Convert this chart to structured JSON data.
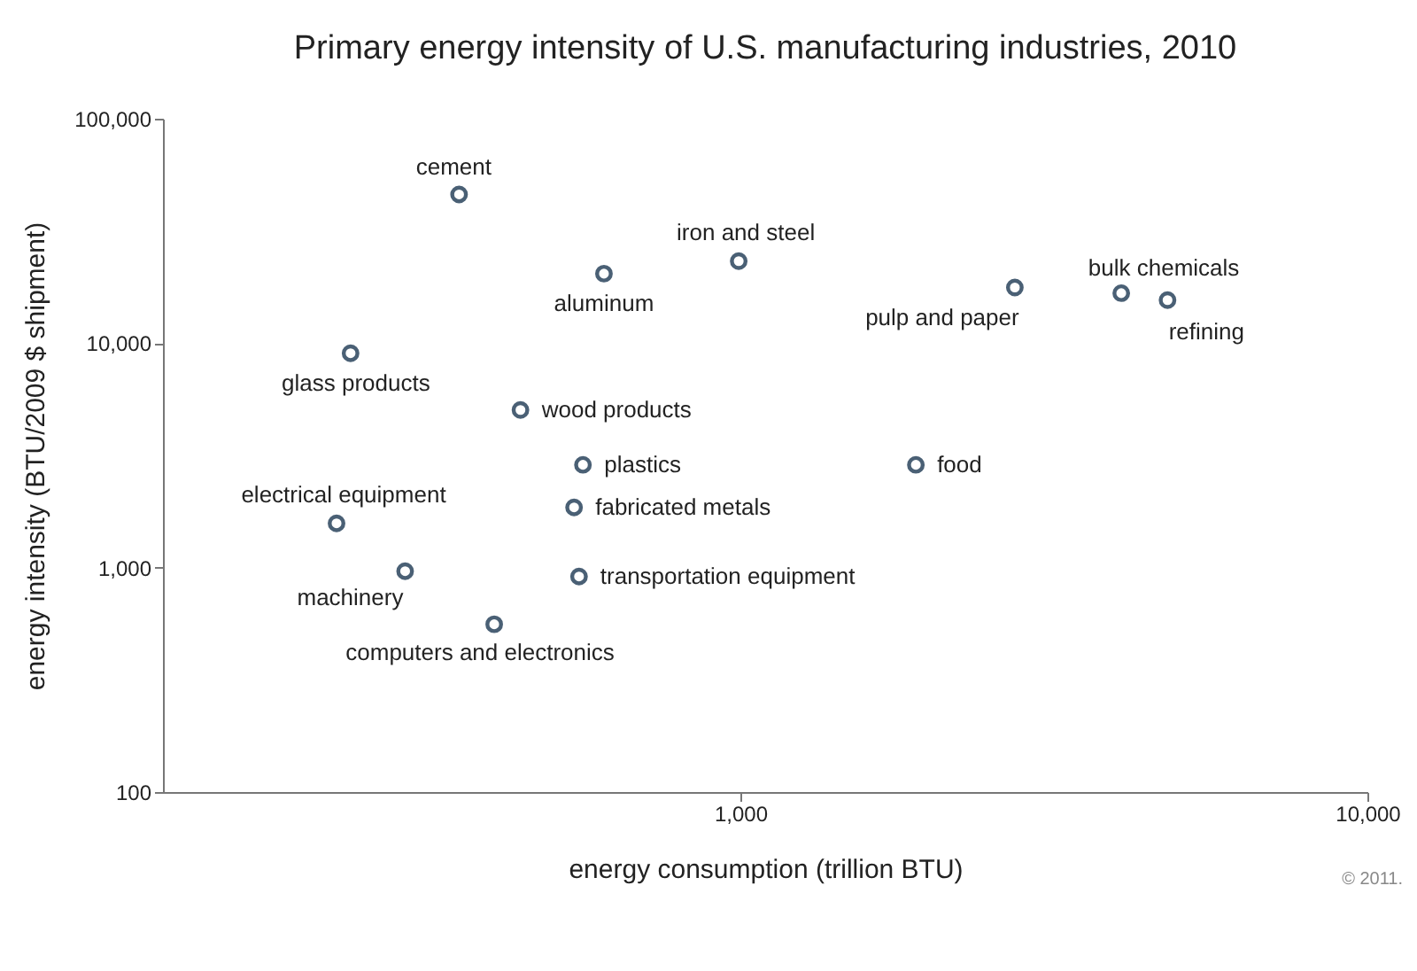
{
  "chart_data": {
    "type": "scatter",
    "title": "Primary energy intensity of U.S. manufacturing industries, 2010",
    "xlabel": "energy consumption (trillion BTU)",
    "ylabel": "energy intensity (BTU/2009 $ shipment)",
    "x": [
      356,
      606,
      994,
      2740,
      4050,
      4800,
      239,
      446,
      561,
      1905,
      227,
      543,
      292,
      553,
      405
    ],
    "series": [
      {
        "color": "#4a6075",
        "values": [
          46000,
          20400,
          23200,
          17700,
          16700,
          15550,
          9020,
          5040,
          2870,
          2870,
          1575,
          1855,
          964,
          913,
          559
        ]
      }
    ],
    "annotations": [
      {
        "text": "cement",
        "x": 356,
        "y": 46000
      },
      {
        "text": "aluminum",
        "x": 606,
        "y": 20400
      },
      {
        "text": "iron and steel",
        "x": 994,
        "y": 23200
      },
      {
        "text": "pulp and paper",
        "x": 2740,
        "y": 17700
      },
      {
        "text": "bulk chemicals",
        "x": 4050,
        "y": 16700
      },
      {
        "text": "refining",
        "x": 4800,
        "y": 15550
      },
      {
        "text": "glass products",
        "x": 239,
        "y": 9020
      },
      {
        "text": "wood products",
        "x": 446,
        "y": 5040
      },
      {
        "text": "plastics",
        "x": 561,
        "y": 2870
      },
      {
        "text": "food",
        "x": 1905,
        "y": 2870
      },
      {
        "text": "electrical equipment",
        "x": 227,
        "y": 1575
      },
      {
        "text": "fabricated metals",
        "x": 543,
        "y": 1855
      },
      {
        "text": "machinery",
        "x": 292,
        "y": 964
      },
      {
        "text": "transportation equipment",
        "x": 553,
        "y": 913
      },
      {
        "text": "computers and electronics",
        "x": 405,
        "y": 559
      },
      "© 2011."
    ],
    "log": "xy",
    "marker": "circle",
    "grid": false,
    "xlim": [
      120,
      10000
    ],
    "xticks": [
      {
        "value": 1000,
        "label": "1,000"
      },
      {
        "value": 10000,
        "label": "10,000"
      }
    ],
    "ylim": [
      100,
      100000
    ],
    "yticks": [
      {
        "value": 100,
        "label": "100"
      },
      {
        "value": 1000,
        "label": "1,000"
      },
      {
        "value": 10000,
        "label": "10,000"
      },
      {
        "value": 100000,
        "label": "100,000"
      }
    ]
  }
}
